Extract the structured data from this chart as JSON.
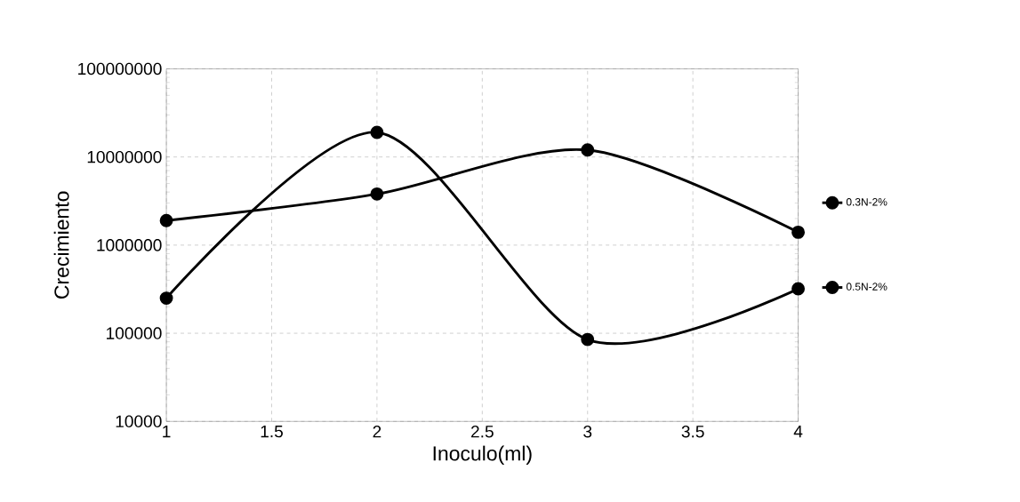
{
  "chart_data": {
    "type": "line",
    "xlabel": "Inoculo(ml)",
    "ylabel": "Crecimiento",
    "x": [
      1,
      2,
      3,
      4
    ],
    "series": [
      {
        "name": "0.3N-2%",
        "color": "#000000",
        "values": [
          1900000,
          3800000,
          12000000,
          1400000
        ]
      },
      {
        "name": "0.5N-2%",
        "color": "#000000",
        "values": [
          250000,
          19000000,
          85000,
          320000
        ]
      }
    ],
    "xlim": [
      1,
      4
    ],
    "xticks": [
      1,
      1.5,
      2,
      2.5,
      3,
      3.5,
      4
    ],
    "ylim": [
      10000,
      100000000
    ],
    "yticks": [
      {
        "value": 10000,
        "label": "10000"
      },
      {
        "value": 100000,
        "label": "100000"
      },
      {
        "value": 1000000,
        "label": "1000000"
      },
      {
        "value": 10000000,
        "label": "10000000"
      },
      {
        "value": 100000000,
        "label": "100000000"
      }
    ],
    "log": "y",
    "grid": true,
    "legend": "right",
    "marker": "circle",
    "line_style": "solid"
  }
}
